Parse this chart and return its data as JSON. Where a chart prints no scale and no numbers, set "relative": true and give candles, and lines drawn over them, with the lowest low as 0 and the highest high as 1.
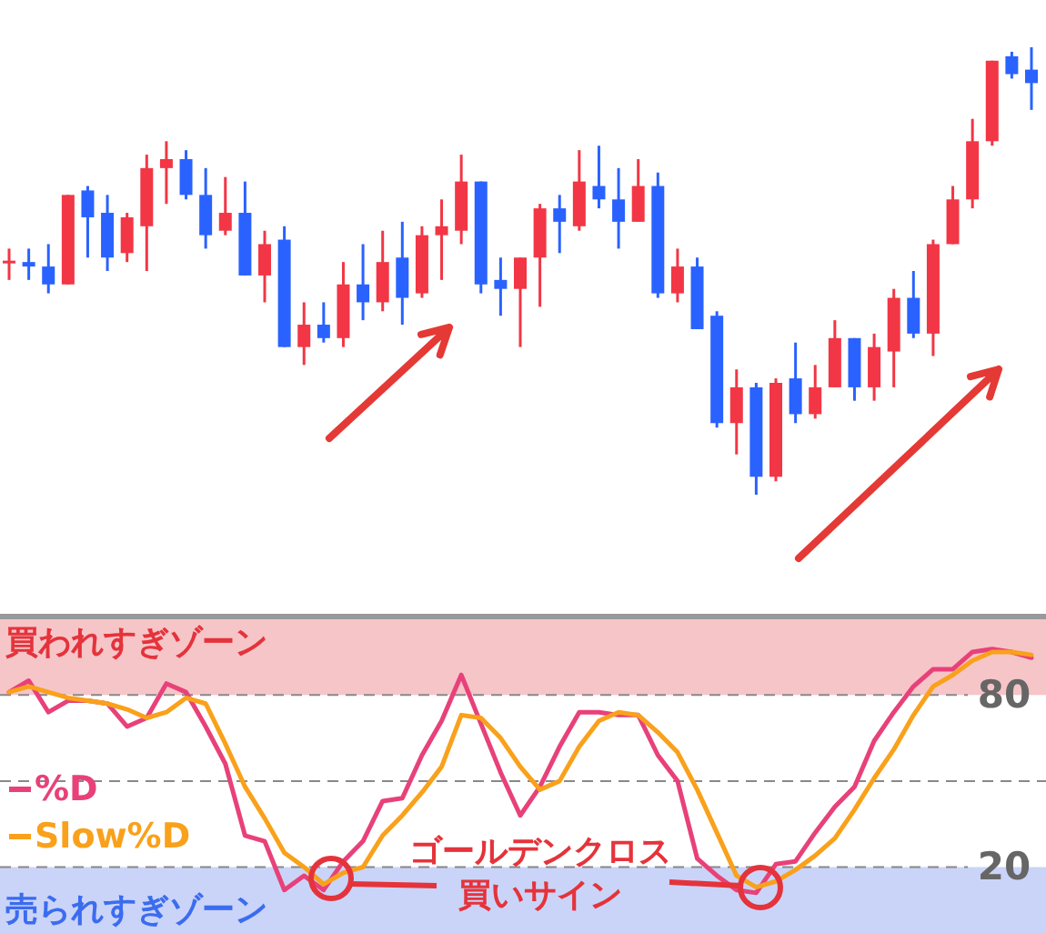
{
  "chart_data": [
    {
      "type": "candlestick",
      "relative": true,
      "tick_labels": false,
      "categories": [
        null,
        null,
        null,
        null,
        null,
        null,
        null,
        null,
        null,
        null,
        null,
        null,
        null,
        null,
        null,
        null,
        null,
        null,
        null,
        null,
        null,
        null,
        null,
        null,
        null,
        null,
        null,
        null,
        null,
        null,
        null,
        null,
        null,
        null,
        null,
        null,
        null,
        null,
        null,
        null,
        null,
        null,
        null,
        null,
        null,
        null,
        null,
        null,
        null,
        null,
        null,
        null,
        null
      ],
      "ohlc": [
        [
          0.52,
          0.55,
          0.48,
          0.52
        ],
        [
          0.52,
          0.55,
          0.48,
          0.51
        ],
        [
          0.51,
          0.56,
          0.45,
          0.47
        ],
        [
          0.47,
          0.67,
          0.47,
          0.67
        ],
        [
          0.68,
          0.69,
          0.53,
          0.62
        ],
        [
          0.63,
          0.67,
          0.5,
          0.53
        ],
        [
          0.54,
          0.63,
          0.52,
          0.62
        ],
        [
          0.6,
          0.76,
          0.5,
          0.73
        ],
        [
          0.73,
          0.79,
          0.65,
          0.75
        ],
        [
          0.75,
          0.77,
          0.66,
          0.67
        ],
        [
          0.67,
          0.73,
          0.55,
          0.58
        ],
        [
          0.59,
          0.71,
          0.58,
          0.63
        ],
        [
          0.63,
          0.7,
          0.49,
          0.49
        ],
        [
          0.49,
          0.59,
          0.43,
          0.56
        ],
        [
          0.57,
          0.6,
          0.33,
          0.33
        ],
        [
          0.33,
          0.43,
          0.29,
          0.38
        ],
        [
          0.38,
          0.43,
          0.34,
          0.35
        ],
        [
          0.35,
          0.52,
          0.33,
          0.47
        ],
        [
          0.47,
          0.56,
          0.39,
          0.43
        ],
        [
          0.43,
          0.59,
          0.41,
          0.52
        ],
        [
          0.53,
          0.61,
          0.38,
          0.44
        ],
        [
          0.45,
          0.6,
          0.44,
          0.58
        ],
        [
          0.58,
          0.66,
          0.48,
          0.6
        ],
        [
          0.59,
          0.76,
          0.56,
          0.7
        ],
        [
          0.7,
          0.7,
          0.45,
          0.47
        ],
        [
          0.48,
          0.53,
          0.4,
          0.46
        ],
        [
          0.46,
          0.53,
          0.33,
          0.53
        ],
        [
          0.53,
          0.65,
          0.42,
          0.64
        ],
        [
          0.64,
          0.67,
          0.54,
          0.61
        ],
        [
          0.6,
          0.77,
          0.59,
          0.7
        ],
        [
          0.69,
          0.78,
          0.64,
          0.66
        ],
        [
          0.66,
          0.73,
          0.55,
          0.61
        ],
        [
          0.61,
          0.75,
          0.61,
          0.69
        ],
        [
          0.69,
          0.72,
          0.44,
          0.45
        ],
        [
          0.45,
          0.55,
          0.43,
          0.51
        ],
        [
          0.51,
          0.53,
          0.37,
          0.37
        ],
        [
          0.4,
          0.41,
          0.15,
          0.16
        ],
        [
          0.16,
          0.28,
          0.09,
          0.24
        ],
        [
          0.24,
          0.25,
          0,
          0.04
        ],
        [
          0.04,
          0.26,
          0.03,
          0.25
        ],
        [
          0.26,
          0.34,
          0.16,
          0.18
        ],
        [
          0.18,
          0.29,
          0.17,
          0.24
        ],
        [
          0.24,
          0.39,
          0.24,
          0.35
        ],
        [
          0.35,
          0.35,
          0.21,
          0.24
        ],
        [
          0.24,
          0.36,
          0.21,
          0.33
        ],
        [
          0.32,
          0.46,
          0.24,
          0.44
        ],
        [
          0.44,
          0.5,
          0.35,
          0.36
        ],
        [
          0.36,
          0.57,
          0.31,
          0.56
        ],
        [
          0.56,
          0.69,
          0.56,
          0.66
        ],
        [
          0.66,
          0.84,
          0.64,
          0.79
        ],
        [
          0.79,
          0.97,
          0.78,
          0.97
        ],
        [
          0.98,
          0.99,
          0.93,
          0.94
        ],
        [
          0.95,
          1,
          0.86,
          0.92
        ]
      ]
    },
    {
      "type": "line",
      "tick_labels": "y",
      "grid": "y",
      "legend": "left",
      "categories": [
        null,
        null,
        null,
        null,
        null,
        null,
        null,
        null,
        null,
        null,
        null,
        null,
        null,
        null,
        null,
        null,
        null,
        null,
        null,
        null,
        null,
        null,
        null,
        null,
        null,
        null,
        null,
        null,
        null,
        null,
        null,
        null,
        null,
        null,
        null,
        null,
        null,
        null,
        null,
        null,
        null,
        null,
        null,
        null,
        null,
        null,
        null,
        null,
        null,
        null,
        null,
        null,
        null
      ],
      "ylim": [
        -3,
        108
      ],
      "yticks": [
        20,
        {
          "value": 50,
          "label": null
        },
        80
      ],
      "bands": [
        {
          "axis": "y",
          "from": 80,
          "to": 108,
          "label": "買われすぎゾーン",
          "color": "#f6c5c8"
        },
        {
          "axis": "y",
          "from": -3,
          "to": 20,
          "label": "売られすぎゾーン",
          "color": "#cad4f8"
        }
      ],
      "series": [
        {
          "name": "%D",
          "color": "#e8417a",
          "values": [
            81,
            85,
            74,
            78,
            78,
            77,
            69,
            72,
            84,
            81,
            69,
            56,
            31,
            29,
            12,
            17,
            12,
            22,
            29,
            43,
            44,
            59,
            71,
            87,
            70,
            53,
            38,
            48,
            62,
            74,
            74,
            73,
            73,
            59,
            50,
            23,
            17,
            12,
            11,
            21,
            22,
            32,
            41,
            48,
            64,
            74,
            83,
            89,
            89,
            95,
            96,
            95,
            93
          ]
        },
        {
          "name": "Slow%D",
          "color": "#f9a11b",
          "values": [
            81,
            83,
            81,
            79,
            78,
            77,
            75,
            72,
            74,
            79,
            77,
            63,
            48,
            37,
            25,
            20,
            14,
            18,
            20,
            31,
            38,
            46,
            55,
            73,
            72,
            65,
            55,
            47,
            50,
            62,
            71,
            74,
            73,
            67,
            60,
            47,
            32,
            17,
            13,
            15,
            19,
            24,
            30,
            40,
            51,
            61,
            73,
            83,
            87,
            92,
            95,
            95,
            94
          ]
        }
      ],
      "annotations": [
        "ゴールデンクロス",
        "買いサイン"
      ]
    }
  ]
}
